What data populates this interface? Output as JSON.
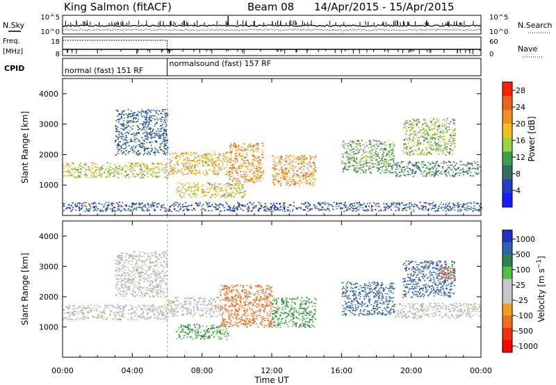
{
  "header": {
    "station": "King Salmon (fitACF)",
    "beam": "Beam 08",
    "date_range": "14/Apr/2015 - 15/Apr/2015"
  },
  "side_labels": {
    "nsky": "N.Sky",
    "nsearch": "N.Search",
    "freq_line1": "Freq.",
    "freq_line2": "[MHz]",
    "nave": "Nave",
    "cpid": "CPID"
  },
  "noise_panel": {
    "left_ticks": [
      "10^5",
      "10^0"
    ],
    "right_ticks": [
      "10^5",
      "10^0"
    ]
  },
  "freq_panel": {
    "left_ticks": [
      "18",
      "8"
    ],
    "right_ticks": [
      "60",
      "0"
    ]
  },
  "cpid_segments": [
    {
      "label": "normal (fast) 151 RF",
      "start_hour": 0,
      "end_hour": 6
    },
    {
      "label": "normalsound (fast) 157 RF",
      "start_hour": 6,
      "end_hour": 24
    }
  ],
  "x_axis": {
    "label": "Time UT",
    "ticks": [
      "00:00",
      "04:00",
      "08:00",
      "12:00",
      "16:00",
      "20:00",
      "00:00"
    ]
  },
  "colors": {
    "power_scale": [
      "#1a1aff",
      "#2040c0",
      "#2f6f60",
      "#3f9f4f",
      "#9fd040",
      "#f0c020",
      "#f09020",
      "#f06020",
      "#ff2010"
    ],
    "velocity_scale": [
      "#2030c0",
      "#3060b0",
      "#2f7f4f",
      "#50c040",
      "#c8c8c8",
      "#c8c8c8",
      "#f0a020",
      "#f07020",
      "#f03010",
      "#ff0000"
    ],
    "ground_scatter": "#b8b8b8"
  },
  "chart_data": [
    {
      "type": "heatmap",
      "title": "",
      "xlabel": "",
      "ylabel": "Slant Range [km]",
      "xlim": [
        0,
        24
      ],
      "ylim": [
        0,
        4500
      ],
      "yticks": [
        "1000",
        "2000",
        "3000",
        "4000"
      ],
      "colorbar_label": "Power [dB]",
      "colorbar_ticks": [
        "4",
        "8",
        "12",
        "16",
        "20",
        "24",
        "28"
      ],
      "colorbar_range": [
        0,
        30
      ],
      "features": [
        {
          "x_range": [
            0.0,
            6.0
          ],
          "range_km": [
            1250,
            1750
          ],
          "value": 16
        },
        {
          "x_range": [
            3.0,
            6.0
          ],
          "range_km": [
            2000,
            3500
          ],
          "value": 7
        },
        {
          "x_range": [
            6.0,
            9.5
          ],
          "range_km": [
            1350,
            2100
          ],
          "value": 20
        },
        {
          "x_range": [
            6.5,
            10.5
          ],
          "range_km": [
            600,
            1100
          ],
          "value": 17
        },
        {
          "x_range": [
            9.5,
            11.5
          ],
          "range_km": [
            1100,
            2400
          ],
          "value": 22
        },
        {
          "x_range": [
            12.0,
            14.5
          ],
          "range_km": [
            1000,
            2000
          ],
          "value": 22
        },
        {
          "x_range": [
            16.0,
            19.0
          ],
          "range_km": [
            1400,
            2500
          ],
          "value": 12
        },
        {
          "x_range": [
            19.0,
            24.0
          ],
          "range_km": [
            1300,
            1800
          ],
          "value": 10
        },
        {
          "x_range": [
            19.5,
            22.5
          ],
          "range_km": [
            2000,
            3200
          ],
          "value": 14
        },
        {
          "x_range": [
            0.0,
            24.0
          ],
          "range_km": [
            150,
            450
          ],
          "value": 6
        }
      ]
    },
    {
      "type": "heatmap",
      "title": "",
      "xlabel": "Time UT",
      "ylabel": "Slant Range [km]",
      "xlim": [
        0,
        24
      ],
      "ylim": [
        0,
        4500
      ],
      "yticks": [
        "1000",
        "2000",
        "3000",
        "4000"
      ],
      "colorbar_label": "Velocity [m s^-1]",
      "colorbar_ticks": [
        "1000",
        "500",
        "100",
        "25",
        "-25",
        "-100",
        "-500",
        "-1000"
      ],
      "colorbar_range": [
        -1000,
        1000
      ],
      "features": [
        {
          "x_range": [
            0.0,
            6.0
          ],
          "range_km": [
            1250,
            1750
          ],
          "value": 0
        },
        {
          "x_range": [
            3.0,
            6.0
          ],
          "range_km": [
            2000,
            3500
          ],
          "value": 0
        },
        {
          "x_range": [
            6.0,
            9.0
          ],
          "range_km": [
            1350,
            2000
          ],
          "value": 0
        },
        {
          "x_range": [
            6.5,
            9.5
          ],
          "range_km": [
            600,
            1100
          ],
          "value": 100
        },
        {
          "x_range": [
            9.0,
            12.0
          ],
          "range_km": [
            1000,
            2400
          ],
          "value": -300
        },
        {
          "x_range": [
            12.0,
            14.5
          ],
          "range_km": [
            1000,
            2000
          ],
          "value": 100
        },
        {
          "x_range": [
            16.0,
            19.0
          ],
          "range_km": [
            1400,
            2500
          ],
          "value": 300
        },
        {
          "x_range": [
            19.0,
            24.0
          ],
          "range_km": [
            1300,
            1800
          ],
          "value": 0
        },
        {
          "x_range": [
            19.5,
            22.5
          ],
          "range_km": [
            2000,
            3200
          ],
          "value": 400
        },
        {
          "x_range": [
            21.5,
            22.5
          ],
          "range_km": [
            2600,
            3000
          ],
          "value": -300
        }
      ]
    }
  ]
}
